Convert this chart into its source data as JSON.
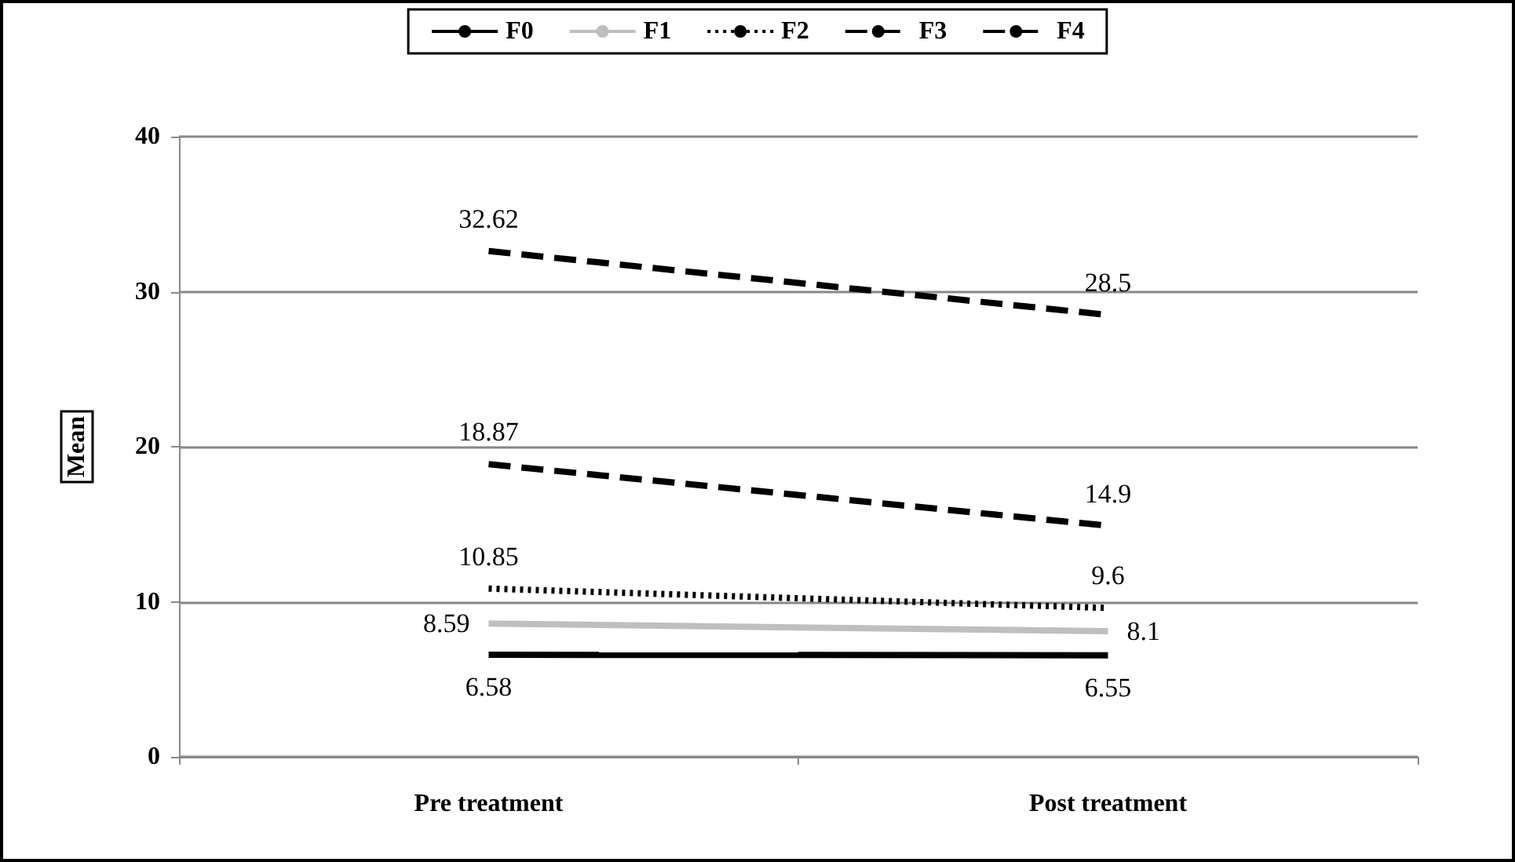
{
  "chart_data": {
    "type": "line",
    "ylabel": "Mean",
    "categories": [
      "Pre treatment",
      "Post treatment"
    ],
    "series": [
      {
        "name": "F0",
        "color": "#000000",
        "values": [
          6.58,
          6.55
        ],
        "line_style": "solid"
      },
      {
        "name": "F1",
        "color": "#bfbfbf",
        "values": [
          8.59,
          8.1
        ],
        "line_style": "solid"
      },
      {
        "name": "F2",
        "color": "#000000",
        "values": [
          10.85,
          9.6
        ],
        "line_style": "dotted"
      },
      {
        "name": "F3",
        "color": "#000000",
        "values": [
          18.87,
          14.9
        ],
        "line_style": "dashed"
      },
      {
        "name": "F4",
        "color": "#000000",
        "values": [
          32.62,
          28.5
        ],
        "line_style": "dashed"
      }
    ],
    "ylim": [
      0,
      40
    ],
    "yticks": [
      0,
      10,
      20,
      30,
      40
    ],
    "grid": "y",
    "legend": "top",
    "marker": "none",
    "data_labels": true
  }
}
